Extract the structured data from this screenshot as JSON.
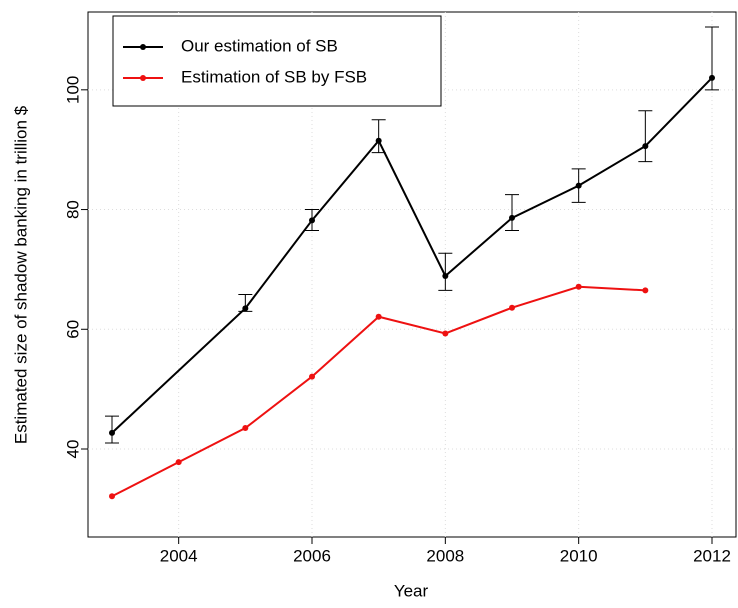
{
  "chart_data": {
    "type": "line",
    "xlabel": "Year",
    "ylabel": "Estimated size of shadow banking in trillion $",
    "xlim": [
      2002.64,
      2012.36
    ],
    "xticks": [
      2004,
      2006,
      2008,
      2010,
      2012
    ],
    "ylim": [
      25.3,
      113
    ],
    "yticks": [
      40,
      60,
      80,
      100
    ],
    "grid": true,
    "legend": "top-left",
    "series": [
      {
        "name": "Our estimation of SB",
        "color": "#000000",
        "x": [
          2003,
          2005,
          2006,
          2007,
          2008,
          2009,
          2010,
          2011,
          2012
        ],
        "values": [
          42.7,
          63.5,
          78.2,
          91.5,
          68.9,
          78.6,
          84.0,
          90.6,
          102.0
        ],
        "error_low": [
          41.0,
          63.0,
          76.5,
          89.5,
          66.5,
          76.5,
          81.2,
          88.0,
          100.0
        ],
        "error_high": [
          45.5,
          65.8,
          80.0,
          95.0,
          72.7,
          82.5,
          86.8,
          96.5,
          110.5
        ]
      },
      {
        "name": "Estimation of SB by FSB",
        "color": "#ee1111",
        "x": [
          2003,
          2004,
          2005,
          2006,
          2007,
          2008,
          2009,
          2010,
          2011
        ],
        "values": [
          32.1,
          37.8,
          43.5,
          52.1,
          62.1,
          59.3,
          63.6,
          67.1,
          66.5
        ]
      }
    ]
  }
}
